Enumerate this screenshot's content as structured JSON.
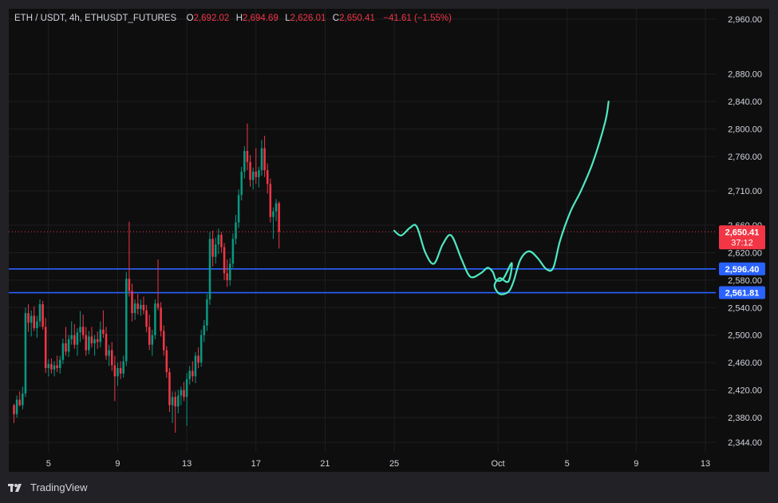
{
  "header": {
    "symbol": "ETH / USDT, 4h, ETHUSDT_FUTURES",
    "open_label": "O",
    "open": "2,692.02",
    "high_label": "H",
    "high": "2,694.69",
    "low_label": "L",
    "low": "2,626.01",
    "close_label": "C",
    "close": "2,650.41",
    "change": "−41.61 (−1.55%)"
  },
  "brand": {
    "name": "TradingView",
    "logo_icon": "tradingview-logo-icon"
  },
  "colors": {
    "background": "#0e0e0f",
    "grid": "#1f1f22",
    "up": "#089981",
    "down": "#f23645",
    "level_line": "#2962ff",
    "drawing": "#4fe8c0",
    "text": "#d1d4dc"
  },
  "price_tag": {
    "price": "2,650.41",
    "countdown": "37:12"
  },
  "levels": [
    {
      "label": "2,596.40",
      "value": 2596.4
    },
    {
      "label": "2,561.81",
      "value": 2561.81
    }
  ],
  "chart_data": {
    "type": "candlestick",
    "title": "ETH / USDT, 4h, ETHUSDT_FUTURES",
    "ylim": [
      2330,
      2975
    ],
    "y_ticks": [
      2344,
      2380,
      2420,
      2460,
      2500,
      2540,
      2580,
      2620,
      2660,
      2710,
      2760,
      2800,
      2840,
      2880,
      2960
    ],
    "y_tick_labels": [
      "2,344.00",
      "2,380.00",
      "2,420.00",
      "2,460.00",
      "2,500.00",
      "2,540.00",
      "2,580.00",
      "2,620.00",
      "2,660.00",
      "2,710.00",
      "2,760.00",
      "2,800.00",
      "2,840.00",
      "2,880.00",
      "2,960.00"
    ],
    "x_ticks": [
      "5",
      "9",
      "13",
      "17",
      "21",
      "25",
      "Oct",
      "5",
      "9",
      "13"
    ],
    "x_tick_days": [
      5,
      9,
      13,
      17,
      21,
      25,
      31,
      35,
      39,
      43
    ],
    "xlim_days": [
      2.7,
      43.6
    ],
    "candle_hours": 4,
    "first_candle_day": 3.0,
    "current_price": 2650.41,
    "candles": [
      [
        2398,
        2400,
        2372,
        2385
      ],
      [
        2385,
        2412,
        2380,
        2406
      ],
      [
        2406,
        2418,
        2396,
        2398
      ],
      [
        2398,
        2425,
        2392,
        2415
      ],
      [
        2415,
        2540,
        2410,
        2532
      ],
      [
        2532,
        2545,
        2505,
        2518
      ],
      [
        2518,
        2536,
        2498,
        2528
      ],
      [
        2528,
        2542,
        2506,
        2510
      ],
      [
        2510,
        2528,
        2496,
        2520
      ],
      [
        2520,
        2552,
        2512,
        2545
      ],
      [
        2545,
        2550,
        2508,
        2512
      ],
      [
        2512,
        2525,
        2445,
        2452
      ],
      [
        2452,
        2465,
        2440,
        2458
      ],
      [
        2458,
        2466,
        2444,
        2450
      ],
      [
        2450,
        2462,
        2440,
        2456
      ],
      [
        2456,
        2470,
        2446,
        2452
      ],
      [
        2452,
        2470,
        2444,
        2464
      ],
      [
        2464,
        2495,
        2458,
        2488
      ],
      [
        2488,
        2512,
        2470,
        2476
      ],
      [
        2476,
        2500,
        2468,
        2494
      ],
      [
        2494,
        2520,
        2486,
        2500
      ],
      [
        2500,
        2516,
        2480,
        2486
      ],
      [
        2486,
        2510,
        2470,
        2504
      ],
      [
        2504,
        2535,
        2490,
        2512
      ],
      [
        2512,
        2530,
        2494,
        2500
      ],
      [
        2500,
        2512,
        2470,
        2478
      ],
      [
        2478,
        2506,
        2472,
        2498
      ],
      [
        2498,
        2512,
        2482,
        2488
      ],
      [
        2488,
        2500,
        2470,
        2494
      ],
      [
        2494,
        2505,
        2480,
        2490
      ],
      [
        2490,
        2520,
        2482,
        2508
      ],
      [
        2508,
        2536,
        2496,
        2502
      ],
      [
        2502,
        2512,
        2464,
        2470
      ],
      [
        2470,
        2486,
        2455,
        2478
      ],
      [
        2478,
        2490,
        2448,
        2456
      ],
      [
        2456,
        2470,
        2404,
        2440
      ],
      [
        2440,
        2460,
        2426,
        2452
      ],
      [
        2452,
        2462,
        2436,
        2444
      ],
      [
        2444,
        2470,
        2438,
        2462
      ],
      [
        2462,
        2592,
        2455,
        2582
      ],
      [
        2582,
        2665,
        2556,
        2564
      ],
      [
        2564,
        2575,
        2520,
        2532
      ],
      [
        2532,
        2552,
        2522,
        2546
      ],
      [
        2546,
        2560,
        2530,
        2538
      ],
      [
        2538,
        2552,
        2528,
        2544
      ],
      [
        2544,
        2556,
        2530,
        2536
      ],
      [
        2536,
        2544,
        2504,
        2512
      ],
      [
        2512,
        2530,
        2478,
        2486
      ],
      [
        2486,
        2508,
        2470,
        2500
      ],
      [
        2500,
        2552,
        2494,
        2546
      ],
      [
        2546,
        2610,
        2536,
        2540
      ],
      [
        2540,
        2548,
        2498,
        2506
      ],
      [
        2506,
        2514,
        2470,
        2478
      ],
      [
        2478,
        2484,
        2438,
        2446
      ],
      [
        2446,
        2452,
        2388,
        2398
      ],
      [
        2398,
        2418,
        2372,
        2410
      ],
      [
        2410,
        2418,
        2358,
        2396
      ],
      [
        2396,
        2420,
        2386,
        2412
      ],
      [
        2412,
        2425,
        2398,
        2420
      ],
      [
        2420,
        2432,
        2404,
        2410
      ],
      [
        2410,
        2445,
        2368,
        2436
      ],
      [
        2436,
        2455,
        2428,
        2448
      ],
      [
        2448,
        2462,
        2432,
        2440
      ],
      [
        2440,
        2475,
        2430,
        2470
      ],
      [
        2470,
        2482,
        2452,
        2460
      ],
      [
        2460,
        2508,
        2454,
        2500
      ],
      [
        2500,
        2522,
        2490,
        2514
      ],
      [
        2514,
        2560,
        2506,
        2552
      ],
      [
        2552,
        2650,
        2544,
        2640
      ],
      [
        2640,
        2652,
        2600,
        2614
      ],
      [
        2614,
        2642,
        2604,
        2632
      ],
      [
        2632,
        2655,
        2618,
        2646
      ],
      [
        2646,
        2650,
        2620,
        2628
      ],
      [
        2628,
        2634,
        2580,
        2590
      ],
      [
        2590,
        2610,
        2570,
        2580
      ],
      [
        2580,
        2612,
        2572,
        2604
      ],
      [
        2604,
        2648,
        2598,
        2640
      ],
      [
        2640,
        2675,
        2632,
        2664
      ],
      [
        2664,
        2712,
        2656,
        2704
      ],
      [
        2704,
        2745,
        2696,
        2738
      ],
      [
        2738,
        2775,
        2728,
        2768
      ],
      [
        2768,
        2808,
        2740,
        2752
      ],
      [
        2752,
        2762,
        2716,
        2726
      ],
      [
        2726,
        2744,
        2712,
        2738
      ],
      [
        2738,
        2772,
        2720,
        2730
      ],
      [
        2730,
        2745,
        2715,
        2740
      ],
      [
        2740,
        2784,
        2732,
        2772
      ],
      [
        2772,
        2790,
        2730,
        2740
      ],
      [
        2740,
        2750,
        2706,
        2720
      ],
      [
        2720,
        2728,
        2664,
        2672
      ],
      [
        2672,
        2686,
        2640,
        2680
      ],
      [
        2680,
        2698,
        2666,
        2692
      ],
      [
        2692,
        2694.69,
        2626.01,
        2650.41
      ]
    ],
    "drawing_path": [
      [
        25.0,
        2652
      ],
      [
        25.4,
        2645
      ],
      [
        25.9,
        2656
      ],
      [
        26.3,
        2658
      ],
      [
        26.8,
        2620
      ],
      [
        27.3,
        2604
      ],
      [
        27.8,
        2632
      ],
      [
        28.3,
        2645
      ],
      [
        28.9,
        2610
      ],
      [
        29.4,
        2585
      ],
      [
        30.0,
        2590
      ],
      [
        30.4,
        2598
      ],
      [
        30.7,
        2592
      ],
      [
        30.9,
        2580
      ],
      [
        31.3,
        2582
      ],
      [
        31.8,
        2605
      ],
      [
        31.6,
        2578
      ],
      [
        31.1,
        2583
      ],
      [
        30.8,
        2572
      ],
      [
        31.1,
        2560
      ],
      [
        31.6,
        2563
      ],
      [
        31.9,
        2578
      ],
      [
        32.3,
        2610
      ],
      [
        32.8,
        2622
      ],
      [
        33.3,
        2612
      ],
      [
        33.8,
        2596
      ],
      [
        34.2,
        2598
      ],
      [
        34.6,
        2638
      ],
      [
        35.2,
        2680
      ],
      [
        35.8,
        2710
      ],
      [
        36.5,
        2752
      ],
      [
        37.2,
        2810
      ],
      [
        37.4,
        2840
      ]
    ]
  }
}
